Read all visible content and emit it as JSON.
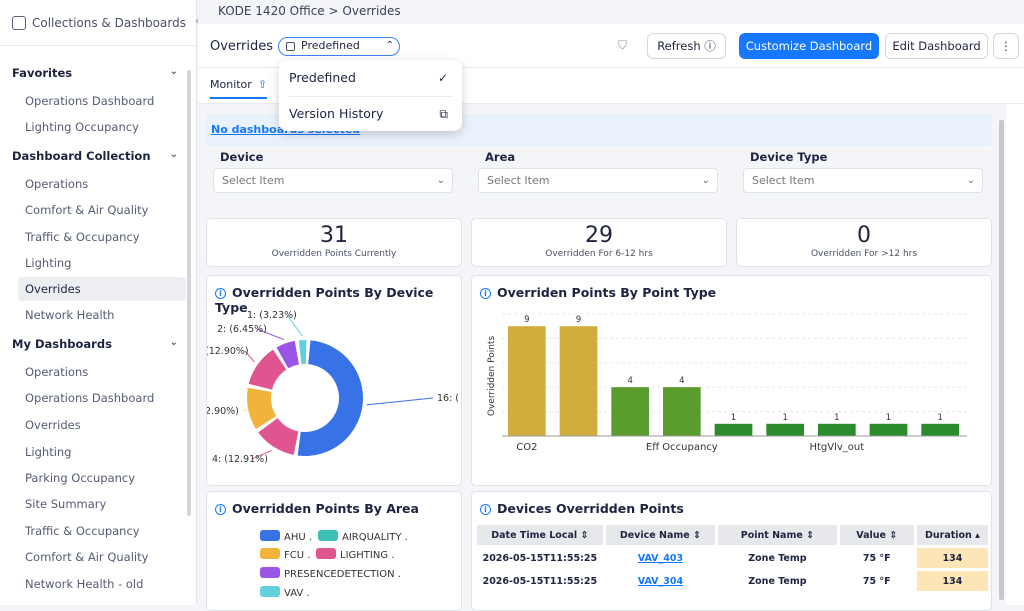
{
  "sidebar": {
    "title": "Collections & Dashboards",
    "sections": [
      {
        "label": "Favorites",
        "items": [
          "Operations Dashboard",
          "Lighting Occupancy"
        ]
      },
      {
        "label": "Dashboard Collection",
        "items": [
          "Operations",
          "Comfort & Air Quality",
          "Traffic & Occupancy",
          "Lighting",
          "Overrides",
          "Network Health"
        ]
      },
      {
        "label": "My Dashboards",
        "items": [
          "Operations",
          "Operations Dashboard",
          "Overrides",
          "Lighting",
          "Parking Occupancy",
          "Site Summary",
          "Traffic & Occupancy",
          "Comfort & Air Quality",
          "Network Health - old"
        ]
      }
    ],
    "active": "Overrides"
  },
  "breadcrumb": {
    "site": "KODE 1420 Office",
    "sep": ">",
    "page": "Overrides"
  },
  "header": {
    "title": "Overrides",
    "view": "Predefined",
    "refresh": "Refresh",
    "customize": "Customize Dashboard",
    "edit": "Edit Dashboard",
    "more": "⋮"
  },
  "tabs": {
    "monitor": "Monitor"
  },
  "dropdown": {
    "items": [
      {
        "label": "Predefined",
        "mark": "✓"
      },
      {
        "label": "Version History",
        "mark": "⧉"
      }
    ]
  },
  "notice": "No dashboards selected",
  "filters": [
    {
      "label": "Device",
      "placeholder": "Select Item"
    },
    {
      "label": "Area",
      "placeholder": "Select Item"
    },
    {
      "label": "Device Type",
      "placeholder": "Select Item"
    }
  ],
  "kpis": [
    {
      "value": "31",
      "label": "Overridden Points Currently"
    },
    {
      "value": "29",
      "label": "Overridden For 6-12 hrs"
    },
    {
      "value": "0",
      "label": "Overridden For >12 hrs"
    }
  ],
  "donut": {
    "title": "Overridden Points By Device Type",
    "chart_data": {
      "type": "pie",
      "slices": [
        {
          "value": 16,
          "color": "#3772e6"
        },
        {
          "value": 4,
          "color": "#e0558f"
        },
        {
          "value": 4,
          "color": "#f2b33d"
        },
        {
          "value": 4,
          "color": "#e0558f"
        },
        {
          "value": 2,
          "color": "#9b55e6"
        },
        {
          "value": 1,
          "color": "#63d1dc"
        }
      ],
      "labels": [
        "16: (",
        "4: (12.91%)",
        "2.90%)",
        "(12.90%)",
        "2: (6.45%)",
        "1: (3.23%)"
      ]
    }
  },
  "bar": {
    "title": "Overriden Points By Point Type",
    "ylabel": "Overridden Points",
    "chart_data": {
      "type": "bar",
      "ylim": [
        0,
        10
      ],
      "values": [
        9,
        9,
        4,
        4,
        1,
        1,
        1,
        1,
        1
      ],
      "colors": [
        "#d1ad3d",
        "#d1ad3d",
        "#5a9b2e",
        "#5a9b2e",
        "#2a8c2a",
        "#2a8c2a",
        "#2a8c2a",
        "#2a8c2a",
        "#2a8c2a"
      ],
      "tick_labels": [
        "CO2",
        "Eff Occupancy",
        "HtgVlv_out"
      ]
    }
  },
  "area": {
    "title": "Overridden Points By Area",
    "legend": [
      [
        "AHU .",
        "#3772e6"
      ],
      [
        "AIRQUALITY .",
        "#3bbfb6"
      ],
      [
        "FCU .",
        "#f2b33d"
      ],
      [
        "LIGHTING .",
        "#e0558f"
      ],
      [
        "PRESENCEDETECTION .",
        "#9b55e6"
      ],
      [
        "VAV .",
        "#63d1dc"
      ]
    ]
  },
  "table": {
    "title": "Devices Overridden Points",
    "columns": [
      "Date Time Local",
      "Device Name",
      "Point Name",
      "Value",
      "Duration"
    ],
    "rows": [
      [
        "2026-05-15T11:55:25",
        "VAV_403",
        "Zone Temp",
        "75 °F",
        "134"
      ],
      [
        "2026-05-15T11:55:25",
        "VAV_304",
        "Zone Temp",
        "75 °F",
        "134"
      ]
    ]
  }
}
